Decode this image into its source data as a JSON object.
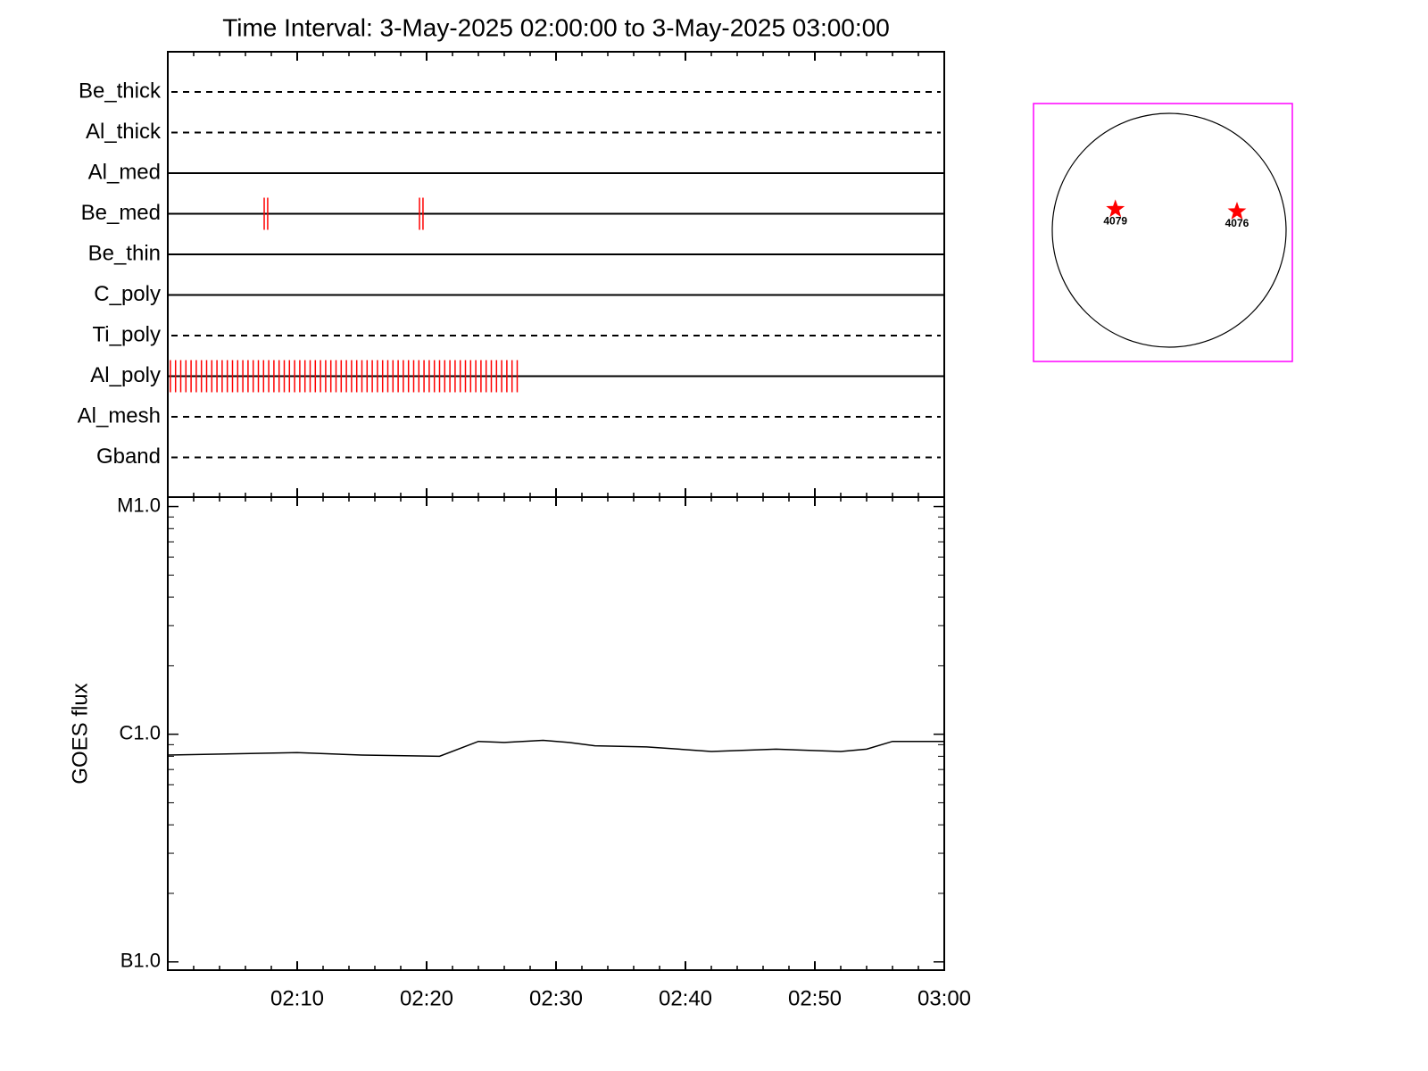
{
  "title": "Time Interval:  3-May-2025 02:00:00 to  3-May-2025 03:00:00",
  "chart_data": [
    {
      "type": "timeline",
      "xlim": [
        0,
        60
      ],
      "color": "#ff0000",
      "rows": [
        {
          "name": "Be_thick",
          "style": "dashed",
          "events": []
        },
        {
          "name": "Al_thick",
          "style": "dashed",
          "events": []
        },
        {
          "name": "Al_med",
          "style": "solid",
          "events": []
        },
        {
          "name": "Be_med",
          "style": "solid",
          "events": [
            7.45,
            7.72,
            19.45,
            19.72
          ]
        },
        {
          "name": "Be_thin",
          "style": "solid",
          "events": []
        },
        {
          "name": "C_poly",
          "style": "solid",
          "events": []
        },
        {
          "name": "Ti_poly",
          "style": "dashed",
          "events": []
        },
        {
          "name": "Al_poly",
          "style": "solid",
          "events": [
            0.2,
            0.6,
            1.0,
            1.4,
            1.8,
            2.2,
            2.6,
            3.0,
            3.4,
            3.8,
            4.2,
            4.6,
            5.0,
            5.4,
            5.8,
            6.2,
            6.6,
            7.0,
            7.4,
            7.8,
            8.2,
            8.6,
            9.0,
            9.4,
            9.8,
            10.2,
            10.6,
            11.0,
            11.4,
            11.8,
            12.2,
            12.6,
            13.0,
            13.4,
            13.8,
            14.2,
            14.6,
            15.0,
            15.4,
            15.8,
            16.2,
            16.6,
            17.0,
            17.4,
            17.8,
            18.2,
            18.6,
            19.0,
            19.4,
            19.8,
            20.2,
            20.6,
            21.0,
            21.4,
            21.8,
            22.2,
            22.6,
            23.0,
            23.4,
            23.8,
            24.2,
            24.6,
            25.0,
            25.4,
            25.8,
            26.2,
            26.6,
            27.0
          ]
        },
        {
          "name": "Al_mesh",
          "style": "dashed",
          "events": []
        },
        {
          "name": "Gband",
          "style": "dashed",
          "events": []
        }
      ]
    },
    {
      "type": "line",
      "ylabel": "GOES flux",
      "log_y": true,
      "color": "#000000",
      "xlim": [
        0,
        60
      ],
      "xticks": [
        {
          "value": 10,
          "label": "02:10"
        },
        {
          "value": 20,
          "label": "02:20"
        },
        {
          "value": 30,
          "label": "02:30"
        },
        {
          "value": 40,
          "label": "02:40"
        },
        {
          "value": 50,
          "label": "02:50"
        },
        {
          "value": 60,
          "label": "03:00"
        }
      ],
      "ylim": [
        9.2e-08,
        1.1e-05
      ],
      "yticks": [
        {
          "value": 1e-05,
          "label": "M1.0"
        },
        {
          "value": 1e-06,
          "label": "C1.0"
        },
        {
          "value": 1e-07,
          "label": "B1.0"
        }
      ],
      "x": [
        0,
        5,
        10,
        15,
        21,
        24,
        26,
        29,
        31,
        33,
        37,
        42,
        47,
        52,
        54,
        56,
        60
      ],
      "values": [
        8.1e-07,
        8.2e-07,
        8.3e-07,
        8.1e-07,
        8e-07,
        9.3e-07,
        9.2e-07,
        9.4e-07,
        9.2e-07,
        8.9e-07,
        8.8e-07,
        8.4e-07,
        8.6e-07,
        8.4e-07,
        8.6e-07,
        9.3e-07,
        9.3e-07
      ]
    },
    {
      "type": "disk",
      "color": "#ff0000",
      "frame_color": "#ff00ff",
      "regions": [
        {
          "label": "4079",
          "x": -0.46,
          "y": 0.18
        },
        {
          "label": "4076",
          "x": 0.58,
          "y": 0.16
        }
      ]
    }
  ]
}
